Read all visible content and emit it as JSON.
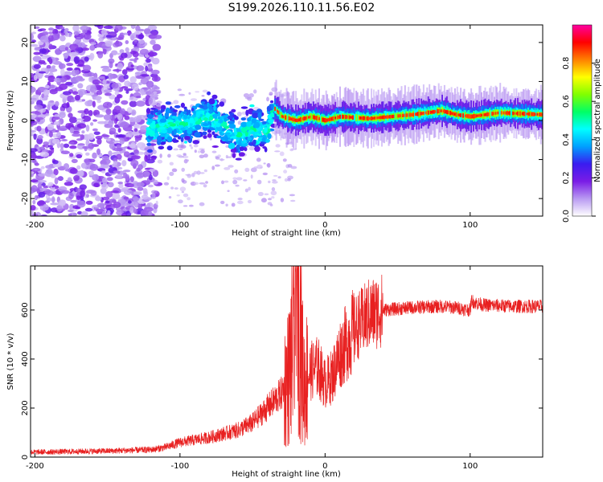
{
  "page": {
    "title": "S199.2026.110.11.56.E02"
  },
  "chart_data": [
    {
      "type": "heatmap",
      "title": "S199.2026.110.11.56.E02",
      "xlabel": "Height of straight line (km)",
      "ylabel": "Frequency (Hz)",
      "xlim": [
        -203,
        150
      ],
      "ylim": [
        -24.5,
        24.5
      ],
      "xticks": [
        -200,
        -100,
        0,
        100
      ],
      "yticks": [
        -20,
        -10,
        0,
        10,
        20
      ],
      "xtick_labels": [
        "-200",
        "-100",
        "0",
        "100"
      ],
      "ytick_labels": [
        "-20",
        "-10",
        "0",
        "10",
        "20"
      ],
      "ridge": {
        "x": [
          -120,
          -100,
          -80,
          -60,
          -50,
          -40,
          -35,
          -30,
          -20,
          -10,
          0,
          10,
          30,
          60,
          80,
          90,
          100,
          120,
          150
        ],
        "freq": [
          -2,
          -1,
          1,
          -4,
          -2,
          -3,
          3,
          1,
          0,
          1,
          0,
          1,
          0.5,
          1.5,
          2.5,
          1.5,
          1,
          2,
          1.5
        ]
      },
      "noise_region_x": [
        -203,
        -115
      ],
      "colorbar": {
        "label": "Normalized spectral amplitude",
        "range": [
          0,
          1
        ],
        "ticks": [
          0.0,
          0.2,
          0.4,
          0.6,
          0.8
        ],
        "tick_labels": [
          "0.0",
          "0.2",
          "0.4",
          "0.6",
          "0.8"
        ],
        "colors": [
          "#ffffff",
          "#b99af2",
          "#7a1ce6",
          "#3a1cf0",
          "#00a0ff",
          "#00ffff",
          "#00ff66",
          "#80ff00",
          "#ffff00",
          "#ff8000",
          "#ff0000",
          "#ff00a0"
        ]
      }
    },
    {
      "type": "line",
      "title": "",
      "xlabel": "Height of straight line (km)",
      "ylabel": "SNR (10 * v/v)",
      "xlim": [
        -203,
        150
      ],
      "ylim": [
        0,
        780
      ],
      "xticks": [
        -200,
        -100,
        0,
        100
      ],
      "yticks": [
        0,
        200,
        400,
        600
      ],
      "xtick_labels": [
        "-200",
        "-100",
        "0",
        "100"
      ],
      "ytick_labels": [
        "0",
        "200",
        "400",
        "600"
      ],
      "series": [
        {
          "name": "SNR",
          "color": "#e82020",
          "x": [
            -203,
            -150,
            -120,
            -110,
            -100,
            -80,
            -60,
            -50,
            -40,
            -30,
            -25,
            -20,
            -18,
            -15,
            -10,
            -5,
            0,
            5,
            10,
            20,
            30,
            40,
            60,
            80,
            90,
            100,
            101,
            103,
            110,
            130,
            150
          ],
          "y": [
            20,
            25,
            30,
            40,
            60,
            80,
            110,
            140,
            200,
            260,
            330,
            560,
            700,
            300,
            350,
            370,
            300,
            330,
            420,
            520,
            580,
            600,
            610,
            615,
            610,
            600,
            640,
            630,
            620,
            615,
            615
          ]
        }
      ]
    }
  ]
}
